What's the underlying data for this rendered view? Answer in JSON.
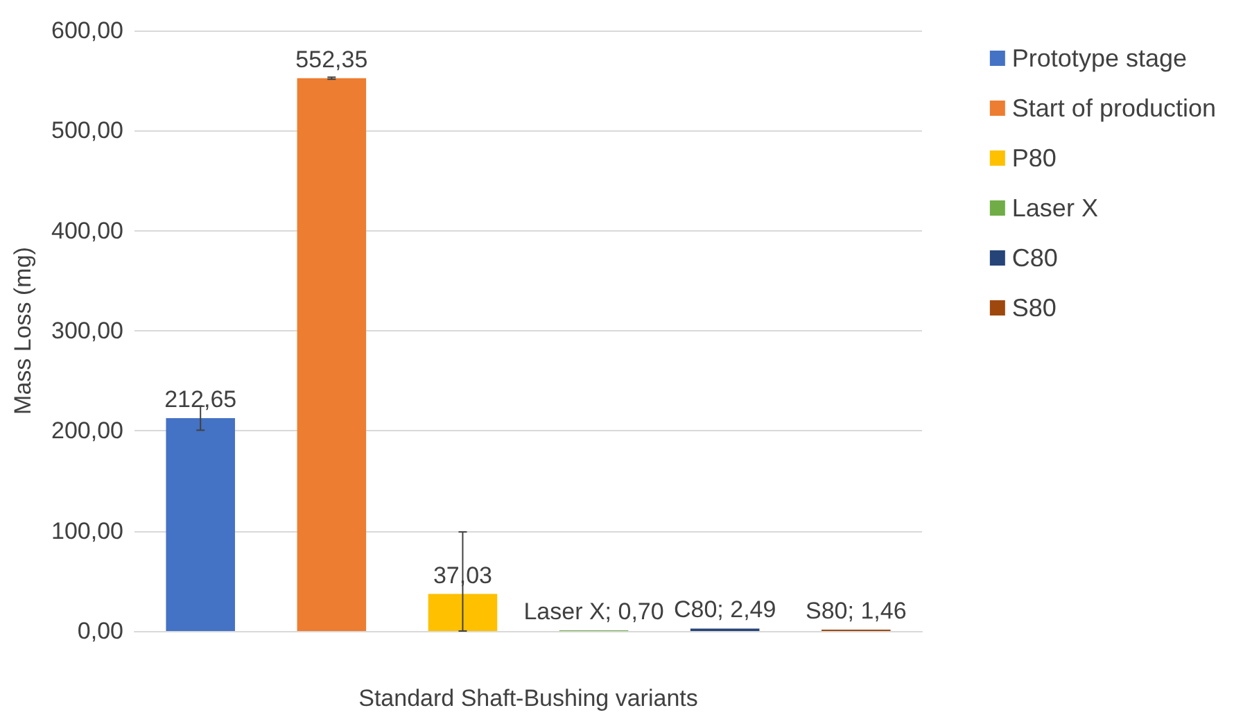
{
  "chart_data": {
    "type": "bar",
    "xlabel": "Standard Shaft-Bushing variants",
    "ylabel": "Mass Loss (mg)",
    "categories": [
      null
    ],
    "series": [
      {
        "name": "Prototype stage",
        "color": "#4472c4",
        "values": [
          212.65
        ],
        "errors": [
          12
        ],
        "value_labels": [
          "212,65"
        ]
      },
      {
        "name": "Start of production",
        "color": "#ed7d31",
        "values": [
          552.35
        ],
        "errors": [
          1
        ],
        "value_labels": [
          "552,35"
        ]
      },
      {
        "name": "P80",
        "color": "#ffc000",
        "values": [
          37.03
        ],
        "errors": [
          [
            0,
            99
          ]
        ],
        "value_labels": [
          "37,03"
        ]
      },
      {
        "name": "Laser X",
        "color": "#70ad47",
        "values": [
          0.7
        ],
        "value_labels": [
          "Laser X; 0,70"
        ]
      },
      {
        "name": "C80",
        "color": "#264478",
        "values": [
          2.49
        ],
        "value_labels": [
          "C80; 2,49"
        ]
      },
      {
        "name": "S80",
        "color": "#9e480e",
        "values": [
          1.46
        ],
        "value_labels": [
          "S80; 1,46"
        ]
      }
    ],
    "ylim": [
      0,
      600
    ],
    "yticks": [
      {
        "value": 0,
        "label": "0,00"
      },
      {
        "value": 100,
        "label": "100,00"
      },
      {
        "value": 200,
        "label": "200,00"
      },
      {
        "value": 300,
        "label": "300,00"
      },
      {
        "value": 400,
        "label": "400,00"
      },
      {
        "value": 500,
        "label": "500,00"
      },
      {
        "value": 600,
        "label": "600,00"
      }
    ],
    "grid": "y",
    "legend": "right"
  }
}
